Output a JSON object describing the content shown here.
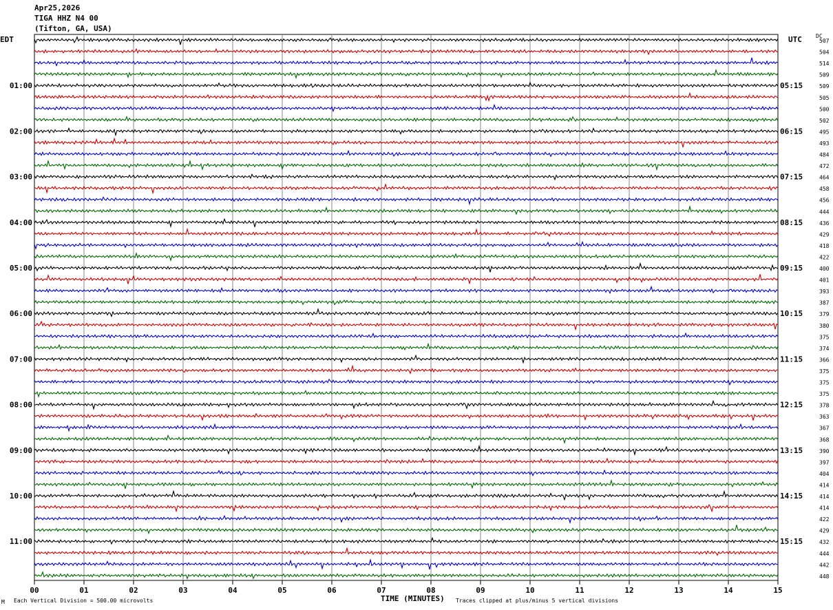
{
  "header": {
    "date": "Apr25,2026",
    "station": "TIGA HHZ N4 00",
    "location": "(Tifton, GA, USA)"
  },
  "labels": {
    "left_tz": "EDT",
    "right_tz": "UTC",
    "dc": "DC"
  },
  "footer": {
    "corner_mark": "M",
    "scale": "Each Vertical Division =  500.00 microvolts",
    "clip_note": "Traces clipped at plus/minus 5 vertical divisions"
  },
  "chart_data": {
    "type": "line",
    "xlabel": "TIME (MINUTES)",
    "xlim": [
      0,
      15
    ],
    "x_ticks": [
      "00",
      "01",
      "02",
      "03",
      "04",
      "05",
      "06",
      "07",
      "08",
      "09",
      "10",
      "11",
      "12",
      "13",
      "14",
      "15"
    ],
    "trace_count": 48,
    "trace_colors": [
      "#000000",
      "#cc0000",
      "#0000cc",
      "#006600"
    ],
    "left_hour_labels": [
      "01:00",
      "02:00",
      "03:00",
      "04:00",
      "05:00",
      "06:00",
      "07:00",
      "08:00",
      "09:00",
      "10:00",
      "11:00"
    ],
    "right_hour_labels": [
      "05:15",
      "06:15",
      "07:15",
      "08:15",
      "09:15",
      "10:15",
      "11:15",
      "12:15",
      "13:15",
      "14:15",
      "15:15"
    ],
    "dc_offsets": [
      507,
      504,
      514,
      509,
      509,
      505,
      500,
      502,
      495,
      493,
      484,
      472,
      464,
      458,
      456,
      444,
      436,
      429,
      418,
      422,
      400,
      401,
      393,
      387,
      379,
      380,
      375,
      374,
      366,
      375,
      375,
      375,
      378,
      363,
      367,
      368,
      390,
      397,
      404,
      414,
      414,
      414,
      422,
      429,
      432,
      444,
      442,
      448
    ],
    "grid": true
  }
}
